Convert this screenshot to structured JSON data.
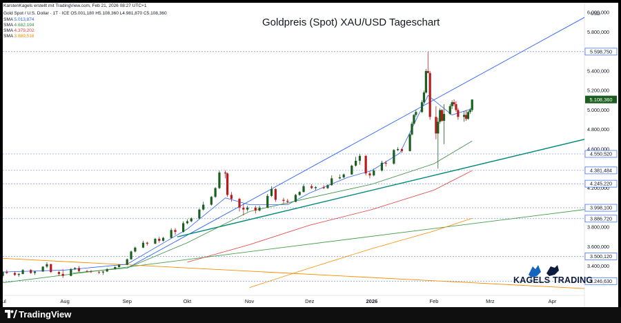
{
  "header": {
    "credit": "KarstenKagels erstellt mit TradingView.com, Feb 21, 2026 08:27 UTC+1",
    "symbol": "Gold Spot / U.S. Dollar · 1T · ICE",
    "ohlc": "O5.001,180  H5.108,360  L4.981,870  C5.108,360"
  },
  "sma_legend": [
    {
      "label": "SMA",
      "value": "5.013,874",
      "color": "#2962ff"
    },
    {
      "label": "SMA",
      "value": "4.682,194",
      "color": "#388e3c"
    },
    {
      "label": "SMA",
      "value": "4.379,202",
      "color": "#e53935"
    },
    {
      "label": "SMA",
      "value": "3.889,518",
      "color": "#fb8c00"
    }
  ],
  "footer": {
    "brand": "TradingView"
  },
  "branding": {
    "name": "KAGELS TRADING"
  },
  "chart_data": {
    "type": "candlestick",
    "title": "Goldpreis (Spot) XAU/USD Tageschart",
    "currency_label": "USD",
    "ylim": [
      3100,
      6100
    ],
    "y_ticks": [
      "3.400,000",
      "3.600,000",
      "3.800,000",
      "4.000,000",
      "4.200,000",
      "4.400,000",
      "4.600,000",
      "4.800,000",
      "5.000,000",
      "5.200,000",
      "5.400,000",
      "5.600,000",
      "5.800,000",
      "6.000,000"
    ],
    "y_tick_values": [
      3400,
      3600,
      3800,
      4000,
      4200,
      4400,
      4600,
      4800,
      5000,
      5200,
      5400,
      5600,
      5800,
      6000
    ],
    "x_ticks": [
      "Jul",
      "Aug",
      "Sep",
      "Okt",
      "Nov",
      "Dez",
      "2026",
      "Feb",
      "Mrz",
      "Apr"
    ],
    "x_tick_dates": [
      "2025-07-01",
      "2025-08-01",
      "2025-09-01",
      "2025-10-01",
      "2025-11-01",
      "2025-12-01",
      "2026-01-01",
      "2026-02-01",
      "2026-03-01",
      "2026-04-01"
    ],
    "x_range": [
      "2025-07-01",
      "2026-04-17"
    ],
    "last_price": {
      "label": "5.108,360",
      "value": 5108.36,
      "color": "#1b5e20"
    },
    "levels": [
      {
        "label": "5.598,750",
        "value": 5598.75
      },
      {
        "label": "4.550,520",
        "value": 4550.52
      },
      {
        "label": "4.381,484",
        "value": 4381.48
      },
      {
        "label": "4.245,220",
        "value": 4245.22
      },
      {
        "label": "3.998,100",
        "value": 3998.1
      },
      {
        "label": "3.886,720",
        "value": 3886.72
      },
      {
        "label": "3.500,120",
        "value": 3500.12
      },
      {
        "label": "3.246,630",
        "value": 3246.63
      }
    ],
    "trendlines": [
      {
        "name": "channel-top",
        "color": "#2962ff",
        "points": [
          [
            "2025-09-01",
            3380
          ],
          [
            "2026-04-17",
            5950
          ]
        ]
      },
      {
        "name": "channel-mid",
        "color": "#00897b",
        "points": [
          [
            "2025-09-26",
            3700
          ],
          [
            "2026-04-17",
            4700
          ]
        ]
      },
      {
        "name": "long-trend",
        "color": "#43a047",
        "points": [
          [
            "2025-07-01",
            3230
          ],
          [
            "2026-04-17",
            3980
          ]
        ]
      },
      {
        "name": "orange-falling",
        "color": "#fb8c00",
        "points": [
          [
            "2025-07-01",
            3480
          ],
          [
            "2026-04-17",
            3170
          ]
        ]
      }
    ],
    "sma_series": [
      {
        "color": "#2962ff",
        "points": [
          [
            "2025-07-01",
            3340
          ],
          [
            "2025-08-01",
            3360
          ],
          [
            "2025-09-01",
            3420
          ],
          [
            "2025-10-01",
            3780
          ],
          [
            "2025-10-20",
            4100
          ],
          [
            "2025-11-01",
            4030
          ],
          [
            "2025-11-20",
            4030
          ],
          [
            "2025-12-01",
            4150
          ],
          [
            "2025-12-20",
            4310
          ],
          [
            "2026-01-01",
            4380
          ],
          [
            "2026-01-15",
            4560
          ],
          [
            "2026-01-29",
            5150
          ],
          [
            "2026-02-10",
            4950
          ],
          [
            "2026-02-20",
            5014
          ]
        ]
      },
      {
        "color": "#388e3c",
        "points": [
          [
            "2025-08-05",
            3330
          ],
          [
            "2025-09-01",
            3380
          ],
          [
            "2025-10-01",
            3640
          ],
          [
            "2025-11-01",
            3960
          ],
          [
            "2025-12-01",
            4100
          ],
          [
            "2026-01-01",
            4240
          ],
          [
            "2026-02-01",
            4450
          ],
          [
            "2026-02-20",
            4682
          ]
        ]
      },
      {
        "color": "#e53935",
        "points": [
          [
            "2025-10-01",
            3440
          ],
          [
            "2025-11-01",
            3620
          ],
          [
            "2025-12-01",
            3820
          ],
          [
            "2026-01-01",
            3980
          ],
          [
            "2026-02-01",
            4180
          ],
          [
            "2026-02-20",
            4379
          ]
        ]
      },
      {
        "color": "#fb8c00",
        "points": [
          [
            "2025-11-01",
            3180
          ],
          [
            "2025-12-01",
            3380
          ],
          [
            "2026-01-01",
            3580
          ],
          [
            "2026-02-01",
            3760
          ],
          [
            "2026-02-20",
            3890
          ]
        ]
      }
    ],
    "candles": [
      [
        "2025-07-01",
        3300,
        3350,
        3280,
        3340
      ],
      [
        "2025-07-03",
        3340,
        3360,
        3320,
        3330
      ],
      [
        "2025-07-07",
        3330,
        3345,
        3300,
        3310
      ],
      [
        "2025-07-09",
        3310,
        3330,
        3290,
        3320
      ],
      [
        "2025-07-11",
        3320,
        3370,
        3315,
        3360
      ],
      [
        "2025-07-15",
        3360,
        3370,
        3320,
        3330
      ],
      [
        "2025-07-17",
        3330,
        3350,
        3310,
        3345
      ],
      [
        "2025-07-21",
        3345,
        3400,
        3340,
        3395
      ],
      [
        "2025-07-23",
        3395,
        3440,
        3380,
        3420
      ],
      [
        "2025-07-25",
        3420,
        3425,
        3330,
        3340
      ],
      [
        "2025-07-29",
        3340,
        3350,
        3300,
        3320
      ],
      [
        "2025-07-31",
        3320,
        3370,
        3280,
        3300
      ],
      [
        "2025-08-04",
        3300,
        3380,
        3295,
        3370
      ],
      [
        "2025-08-06",
        3370,
        3390,
        3360,
        3380
      ],
      [
        "2025-08-08",
        3380,
        3400,
        3340,
        3350
      ],
      [
        "2025-08-12",
        3350,
        3360,
        3340,
        3345
      ],
      [
        "2025-08-14",
        3345,
        3360,
        3330,
        3340
      ],
      [
        "2025-08-18",
        3340,
        3350,
        3320,
        3335
      ],
      [
        "2025-08-20",
        3335,
        3350,
        3310,
        3345
      ],
      [
        "2025-08-22",
        3345,
        3380,
        3340,
        3370
      ],
      [
        "2025-08-26",
        3370,
        3400,
        3365,
        3390
      ],
      [
        "2025-08-28",
        3390,
        3420,
        3385,
        3415
      ],
      [
        "2025-09-01",
        3415,
        3480,
        3410,
        3470
      ],
      [
        "2025-09-03",
        3470,
        3560,
        3465,
        3550
      ],
      [
        "2025-09-05",
        3550,
        3600,
        3540,
        3590
      ],
      [
        "2025-09-09",
        3590,
        3660,
        3585,
        3640
      ],
      [
        "2025-09-11",
        3640,
        3650,
        3610,
        3630
      ],
      [
        "2025-09-15",
        3630,
        3690,
        3625,
        3680
      ],
      [
        "2025-09-17",
        3680,
        3700,
        3640,
        3660
      ],
      [
        "2025-09-19",
        3660,
        3700,
        3650,
        3690
      ],
      [
        "2025-09-23",
        3690,
        3790,
        3685,
        3770
      ],
      [
        "2025-09-25",
        3770,
        3790,
        3720,
        3750
      ],
      [
        "2025-09-29",
        3750,
        3860,
        3745,
        3840
      ],
      [
        "2025-10-01",
        3840,
        3880,
        3830,
        3860
      ],
      [
        "2025-10-03",
        3860,
        3900,
        3850,
        3890
      ],
      [
        "2025-10-07",
        3890,
        3990,
        3880,
        3980
      ],
      [
        "2025-10-09",
        3980,
        4060,
        3970,
        4030
      ],
      [
        "2025-10-13",
        4030,
        4120,
        4020,
        4110
      ],
      [
        "2025-10-15",
        4110,
        4210,
        4100,
        4200
      ],
      [
        "2025-10-17",
        4200,
        4380,
        4190,
        4360
      ],
      [
        "2025-10-20",
        4360,
        4381,
        4300,
        4350
      ],
      [
        "2025-10-21",
        4350,
        4360,
        4110,
        4130
      ],
      [
        "2025-10-23",
        4130,
        4160,
        4060,
        4090
      ],
      [
        "2025-10-27",
        4090,
        4100,
        3960,
        4000
      ],
      [
        "2025-10-29",
        4000,
        4040,
        3920,
        3980
      ],
      [
        "2025-10-31",
        3980,
        4020,
        3960,
        4000
      ],
      [
        "2025-11-04",
        4000,
        4020,
        3940,
        3970
      ],
      [
        "2025-11-06",
        3970,
        4020,
        3960,
        4000
      ],
      [
        "2025-11-10",
        4000,
        4140,
        3995,
        4120
      ],
      [
        "2025-11-12",
        4120,
        4220,
        4110,
        4190
      ],
      [
        "2025-11-14",
        4190,
        4200,
        4060,
        4080
      ],
      [
        "2025-11-18",
        4080,
        4100,
        4040,
        4070
      ],
      [
        "2025-11-20",
        4070,
        4090,
        4040,
        4060
      ],
      [
        "2025-11-24",
        4060,
        4140,
        4055,
        4130
      ],
      [
        "2025-11-26",
        4130,
        4170,
        4120,
        4160
      ],
      [
        "2025-11-28",
        4160,
        4240,
        4155,
        4220
      ],
      [
        "2025-12-02",
        4220,
        4240,
        4190,
        4200
      ],
      [
        "2025-12-04",
        4200,
        4220,
        4180,
        4210
      ],
      [
        "2025-12-08",
        4210,
        4230,
        4190,
        4200
      ],
      [
        "2025-12-10",
        4200,
        4240,
        4190,
        4230
      ],
      [
        "2025-12-12",
        4230,
        4330,
        4225,
        4300
      ],
      [
        "2025-12-16",
        4300,
        4340,
        4290,
        4310
      ],
      [
        "2025-12-18",
        4310,
        4350,
        4300,
        4340
      ],
      [
        "2025-12-22",
        4340,
        4440,
        4335,
        4430
      ],
      [
        "2025-12-24",
        4430,
        4520,
        4420,
        4480
      ],
      [
        "2025-12-26",
        4480,
        4549,
        4440,
        4530
      ],
      [
        "2025-12-29",
        4530,
        4540,
        4330,
        4350
      ],
      [
        "2025-12-31",
        4350,
        4370,
        4300,
        4330
      ],
      [
        "2026-01-02",
        4330,
        4400,
        4320,
        4380
      ],
      [
        "2026-01-06",
        4380,
        4480,
        4370,
        4460
      ],
      [
        "2026-01-08",
        4460,
        4480,
        4420,
        4450
      ],
      [
        "2026-01-12",
        4450,
        4600,
        4440,
        4590
      ],
      [
        "2026-01-14",
        4590,
        4620,
        4580,
        4600
      ],
      [
        "2026-01-16",
        4600,
        4610,
        4560,
        4580
      ],
      [
        "2026-01-20",
        4580,
        4760,
        4575,
        4750
      ],
      [
        "2026-01-21",
        4750,
        4880,
        4740,
        4860
      ],
      [
        "2026-01-22",
        4860,
        4960,
        4850,
        4950
      ],
      [
        "2026-01-23",
        4950,
        5000,
        4930,
        4980
      ],
      [
        "2026-01-26",
        4980,
        5100,
        4970,
        5080
      ],
      [
        "2026-01-27",
        5080,
        5200,
        5070,
        5180
      ],
      [
        "2026-01-28",
        5180,
        5420,
        5170,
        5400
      ],
      [
        "2026-01-29",
        5400,
        5598,
        5380,
        5380
      ],
      [
        "2026-01-30",
        5380,
        5400,
        4900,
        4930
      ],
      [
        "2026-02-02",
        4930,
        5040,
        4700,
        4760
      ],
      [
        "2026-02-03",
        4760,
        4920,
        4400,
        4880
      ],
      [
        "2026-02-04",
        4880,
        5020,
        4860,
        5000
      ],
      [
        "2026-02-05",
        5000,
        5010,
        4880,
        4890
      ],
      [
        "2026-02-06",
        4890,
        5060,
        4650,
        4960
      ],
      [
        "2026-02-09",
        4960,
        5060,
        4950,
        5040
      ],
      [
        "2026-02-10",
        5040,
        5100,
        5010,
        5080
      ],
      [
        "2026-02-11",
        5080,
        5110,
        5040,
        5060
      ],
      [
        "2026-02-12",
        5060,
        5090,
        4980,
        5000
      ],
      [
        "2026-02-13",
        5000,
        5020,
        4900,
        4930
      ],
      [
        "2026-02-16",
        4930,
        4990,
        4880,
        4950
      ],
      [
        "2026-02-17",
        4950,
        5000,
        4890,
        4910
      ],
      [
        "2026-02-18",
        4910,
        4990,
        4900,
        4980
      ],
      [
        "2026-02-19",
        4980,
        5020,
        4960,
        5001
      ],
      [
        "2026-02-20",
        5001,
        5108,
        4982,
        5108
      ]
    ]
  }
}
